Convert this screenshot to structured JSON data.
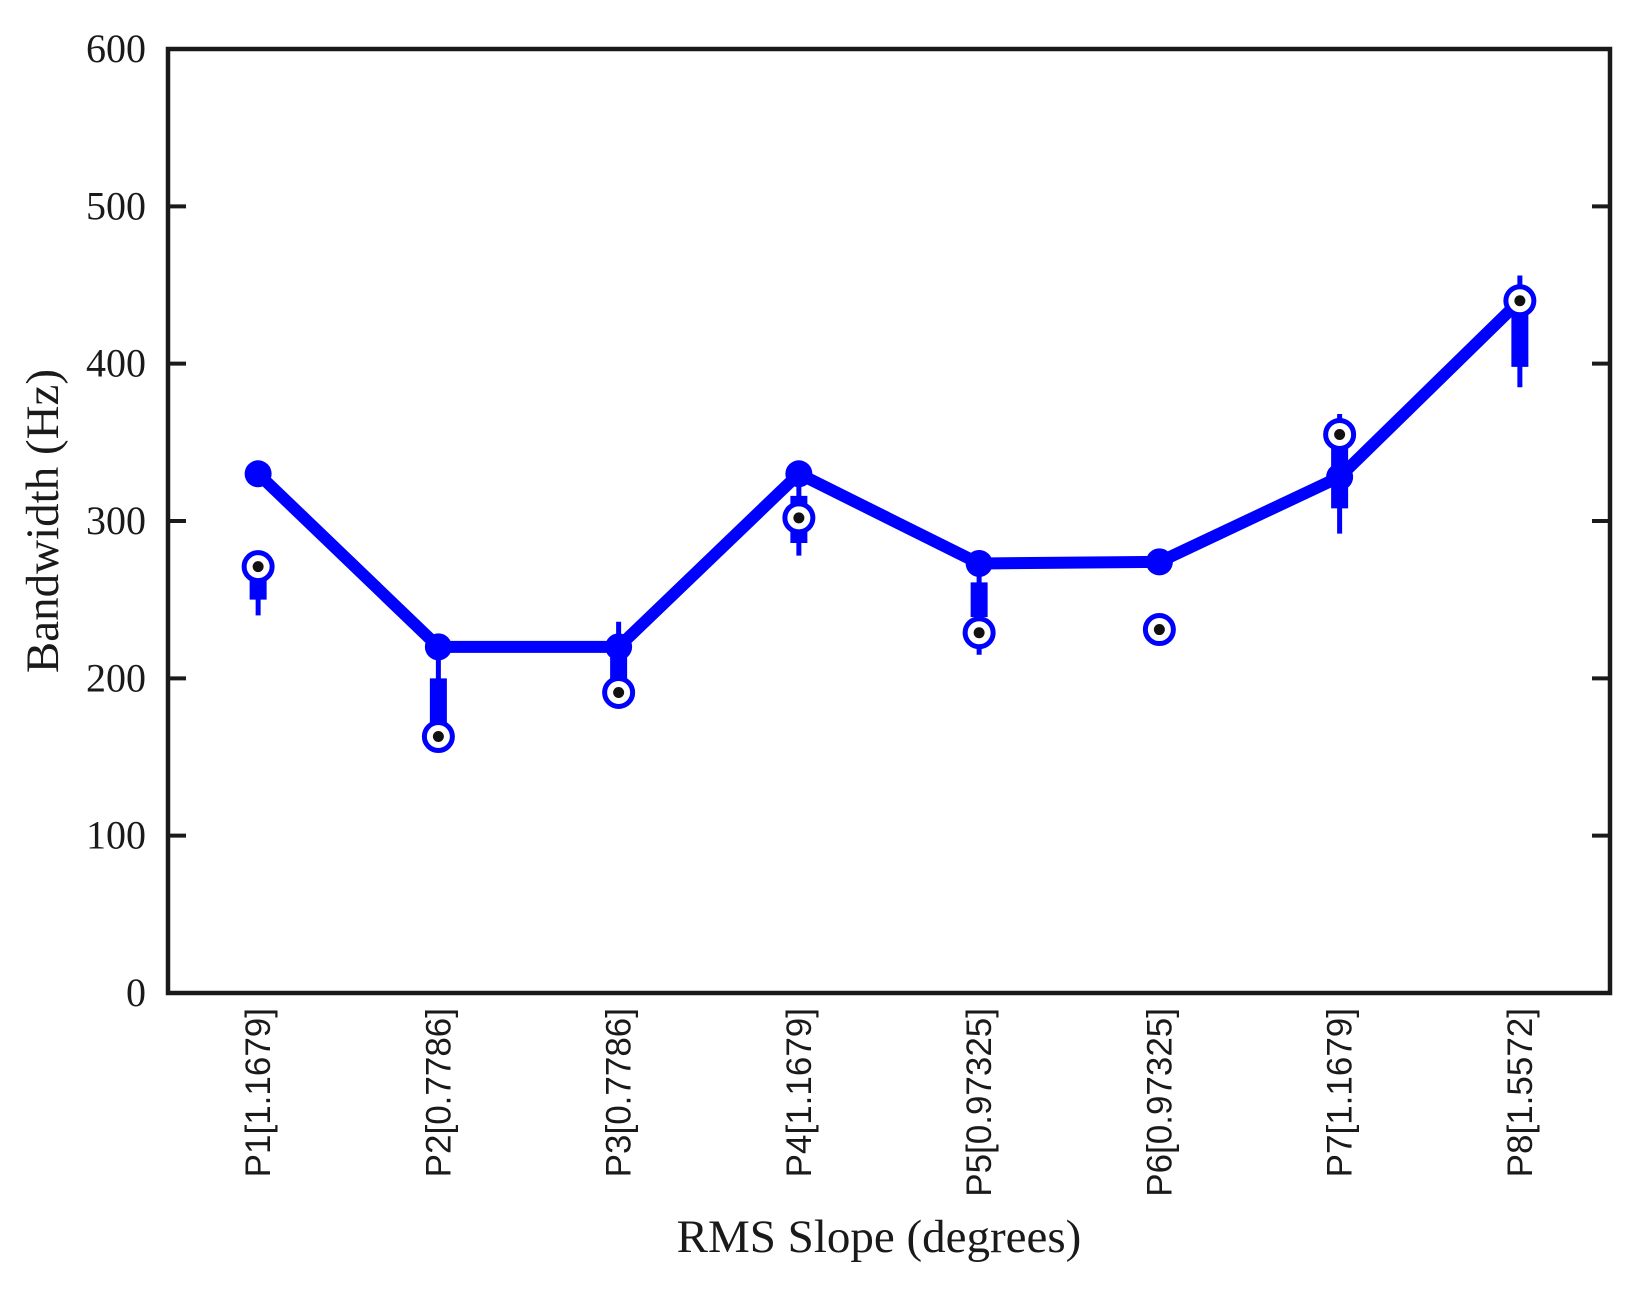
{
  "chart_data": {
    "type": "boxplot",
    "subtype": "compact-boxplots-with-trend-line",
    "title": "",
    "xlabel": "RMS Slope (degrees)",
    "ylabel": "Bandwidth (Hz)",
    "ylim": [
      0,
      600
    ],
    "yticks": [
      0,
      100,
      200,
      300,
      400,
      500,
      600
    ],
    "grid": false,
    "legend": "none",
    "accent_color": "#0000FF",
    "axis_color": "#1a1a1a",
    "marker_dot_color": "#111111",
    "categories": [
      "P1[1.1679]",
      "P2[0.7786]",
      "P3[0.7786]",
      "P4[1.1679]",
      "P5[0.97325]",
      "P6[0.97325]",
      "P7[1.1679]",
      "P8[1.5572]"
    ],
    "line_series": {
      "name": "bandwidth-trend-line",
      "values": [
        330,
        220,
        220,
        330,
        273,
        274,
        328,
        440
      ]
    },
    "boxplots": [
      {
        "category": "P1[1.1679]",
        "median": 271,
        "q1": 250,
        "q3": 264,
        "whisker_low": 240,
        "whisker_high": 264
      },
      {
        "category": "P2[0.7786]",
        "median": 163,
        "q1": 167,
        "q3": 200,
        "whisker_low": 167,
        "whisker_high": 213
      },
      {
        "category": "P3[0.7786]",
        "median": 191,
        "q1": 198,
        "q3": 218,
        "whisker_low": 198,
        "whisker_high": 236
      },
      {
        "category": "P4[1.1679]",
        "median": 302,
        "q1": 286,
        "q3": 316,
        "whisker_low": 278,
        "whisker_high": 323
      },
      {
        "category": "P5[0.97325]",
        "median": 229,
        "q1": 239,
        "q3": 261,
        "whisker_low": 215,
        "whisker_high": 270
      },
      {
        "category": "P6[0.97325]",
        "median": 231,
        "q1": null,
        "q3": null,
        "whisker_low": null,
        "whisker_high": null
      },
      {
        "category": "P7[1.1679]",
        "median": 355,
        "q1": 308,
        "q3": 347,
        "whisker_low": 292,
        "whisker_high": 368
      },
      {
        "category": "P8[1.5572]",
        "median": 440,
        "q1": 398,
        "q3": 432,
        "whisker_low": 385,
        "whisker_high": 456
      }
    ]
  }
}
